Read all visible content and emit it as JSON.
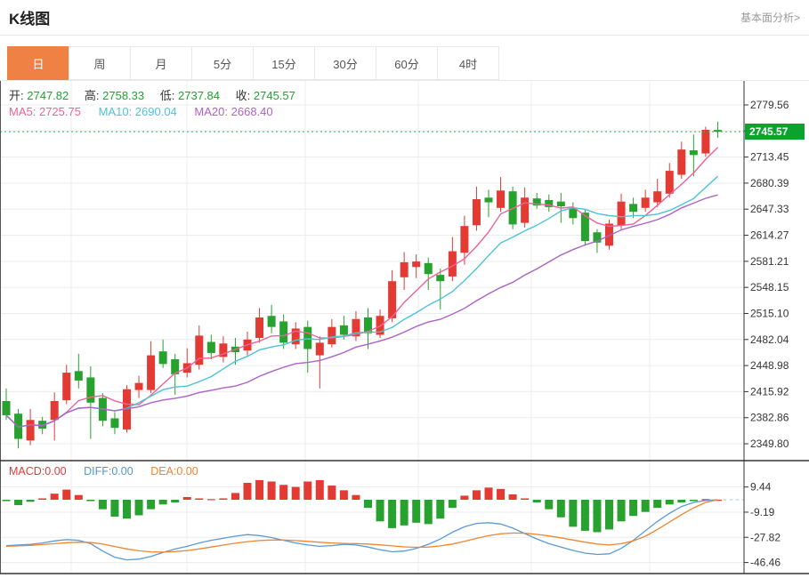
{
  "header": {
    "title": "K线图",
    "link": "基本面分析>"
  },
  "tabs": {
    "items": [
      "日",
      "周",
      "月",
      "5分",
      "15分",
      "30分",
      "60分",
      "4时"
    ],
    "selected_index": 0
  },
  "ohlc": {
    "open_label": "开:",
    "open": "2747.82",
    "high_label": "高:",
    "high": "2758.33",
    "low_label": "低:",
    "low": "2737.84",
    "close_label": "收:",
    "close": "2745.57"
  },
  "ma_readout": {
    "ma5_label": "MA5:",
    "ma5": "2725.75",
    "ma10_label": "MA10:",
    "ma10": "2690.04",
    "ma20_label": "MA20:",
    "ma20": "2668.40"
  },
  "macd_readout": {
    "macd_label": "MACD:",
    "macd": "0.00",
    "diff_label": "DIFF:",
    "diff": "0.00",
    "dea_label": "DEA:",
    "dea": "0.00"
  },
  "colors": {
    "accent_orange": "#ee8143",
    "candle_up": "#e33a34",
    "candle_down": "#27a22e",
    "ma5": "#ee6395",
    "ma10": "#4cc3d9",
    "ma20": "#ad62c6",
    "diff_line": "#5b9bd5",
    "dea_line": "#ee8532",
    "macd_label": "#e23b3b",
    "diff_label": "#4f96d6",
    "dea_label": "#ef8430",
    "ohlc_value_green": "#1aa62e",
    "price_tag_bg": "#0ba32e",
    "dotted_line": "#2fb457",
    "axis_text": "#333333",
    "grid": "#ececec",
    "frame": "#333333"
  },
  "chart_data": {
    "type": "candlestick",
    "panes": [
      "price",
      "macd"
    ],
    "legend_position": "top-left-overlay",
    "grid": true,
    "price_ticks": [
      "2779.56",
      "2745.57",
      "2713.45",
      "2680.39",
      "2647.33",
      "2614.27",
      "2581.21",
      "2548.15",
      "2515.10",
      "2482.04",
      "2448.98",
      "2415.92",
      "2382.86",
      "2349.80"
    ],
    "current_tick_index": 1,
    "current_price": 2745.57,
    "current_price_label": "2745.57",
    "macd_ticks": [
      "9.44",
      "-9.19",
      "-27.82",
      "-46.46"
    ],
    "ma_periods": [
      5,
      10,
      20
    ],
    "candles_ohlc": [
      [
        2404,
        2420,
        2380,
        2386
      ],
      [
        2388,
        2394,
        2344,
        2356
      ],
      [
        2354,
        2394,
        2348,
        2380
      ],
      [
        2379,
        2384,
        2362,
        2369
      ],
      [
        2380,
        2415,
        2354,
        2404
      ],
      [
        2405,
        2450,
        2400,
        2440
      ],
      [
        2442,
        2464,
        2420,
        2430
      ],
      [
        2434,
        2448,
        2356,
        2402
      ],
      [
        2408,
        2414,
        2372,
        2379
      ],
      [
        2382,
        2390,
        2362,
        2370
      ],
      [
        2368,
        2424,
        2364,
        2419
      ],
      [
        2418,
        2436,
        2408,
        2427
      ],
      [
        2418,
        2480,
        2414,
        2462
      ],
      [
        2467,
        2482,
        2446,
        2451
      ],
      [
        2457,
        2464,
        2412,
        2438
      ],
      [
        2440,
        2471,
        2434,
        2452
      ],
      [
        2450,
        2500,
        2444,
        2487
      ],
      [
        2479,
        2488,
        2457,
        2465
      ],
      [
        2460,
        2486,
        2453,
        2477
      ],
      [
        2473,
        2484,
        2450,
        2466
      ],
      [
        2468,
        2492,
        2462,
        2482
      ],
      [
        2484,
        2522,
        2478,
        2510
      ],
      [
        2512,
        2526,
        2490,
        2498
      ],
      [
        2505,
        2514,
        2470,
        2478
      ],
      [
        2476,
        2504,
        2470,
        2496
      ],
      [
        2498,
        2506,
        2440,
        2470
      ],
      [
        2462,
        2486,
        2420,
        2478
      ],
      [
        2476,
        2508,
        2472,
        2498
      ],
      [
        2500,
        2512,
        2482,
        2488
      ],
      [
        2486,
        2518,
        2480,
        2508
      ],
      [
        2510,
        2522,
        2470,
        2490
      ],
      [
        2488,
        2520,
        2484,
        2512
      ],
      [
        2509,
        2570,
        2504,
        2556
      ],
      [
        2561,
        2593,
        2545,
        2580
      ],
      [
        2574,
        2590,
        2560,
        2581
      ],
      [
        2579,
        2586,
        2545,
        2565
      ],
      [
        2564,
        2572,
        2520,
        2556
      ],
      [
        2562,
        2612,
        2556,
        2594
      ],
      [
        2592,
        2639,
        2577,
        2626
      ],
      [
        2627,
        2676,
        2620,
        2660
      ],
      [
        2662,
        2672,
        2637,
        2656
      ],
      [
        2649,
        2688,
        2644,
        2671
      ],
      [
        2670,
        2676,
        2622,
        2628
      ],
      [
        2630,
        2675,
        2624,
        2662
      ],
      [
        2661,
        2668,
        2648,
        2652
      ],
      [
        2659,
        2666,
        2644,
        2650
      ],
      [
        2657,
        2668,
        2630,
        2651
      ],
      [
        2649,
        2656,
        2628,
        2636
      ],
      [
        2643,
        2648,
        2601,
        2607
      ],
      [
        2618,
        2622,
        2592,
        2605
      ],
      [
        2601,
        2634,
        2596,
        2629
      ],
      [
        2627,
        2667,
        2622,
        2657
      ],
      [
        2654,
        2662,
        2636,
        2644
      ],
      [
        2649,
        2672,
        2644,
        2662
      ],
      [
        2656,
        2686,
        2650,
        2670
      ],
      [
        2667,
        2706,
        2662,
        2696
      ],
      [
        2691,
        2733,
        2686,
        2723
      ],
      [
        2722,
        2742,
        2689,
        2716
      ],
      [
        2718,
        2752,
        2714,
        2748
      ],
      [
        2747.82,
        2758.33,
        2737.84,
        2745.57
      ]
    ],
    "macd_hist": [
      -1,
      -4,
      -1.5,
      1,
      4.5,
      7.5,
      3.5,
      -1,
      -7,
      -12.5,
      -14,
      -11.5,
      -7,
      -3.5,
      -2,
      2,
      1,
      0.5,
      1,
      5,
      12.5,
      14.5,
      13.5,
      11,
      9.5,
      13.5,
      14.5,
      10.5,
      7,
      3.5,
      -6,
      -16,
      -21,
      -19,
      -17,
      -18,
      -14,
      -6,
      3,
      7,
      9,
      8,
      4,
      1,
      -2,
      -7,
      -13,
      -20,
      -23,
      -24,
      -22,
      -16,
      -12,
      -9,
      -6,
      -3.5,
      -2,
      -1,
      0.5,
      0
    ],
    "diff": [
      -34,
      -33.5,
      -33,
      -32,
      -30.5,
      -29.5,
      -30,
      -32.5,
      -38,
      -42.5,
      -44.5,
      -44,
      -42,
      -39,
      -36.5,
      -34.5,
      -32,
      -30,
      -28.5,
      -27,
      -25.8,
      -26.5,
      -28,
      -30,
      -32,
      -33.5,
      -34.5,
      -34,
      -33,
      -33.5,
      -35,
      -37,
      -38.5,
      -38,
      -36,
      -33,
      -29,
      -24,
      -20,
      -17.5,
      -17,
      -18,
      -21,
      -25,
      -29,
      -32.5,
      -35,
      -37.5,
      -39.5,
      -40.5,
      -40,
      -36,
      -30,
      -23,
      -16,
      -10,
      -5,
      -2,
      -0.5,
      0
    ],
    "dea": [
      -34.5,
      -34.2,
      -33.8,
      -33.2,
      -32.5,
      -31.8,
      -31.4,
      -31.6,
      -32.8,
      -34.6,
      -36.4,
      -37.8,
      -38.6,
      -38.8,
      -38.4,
      -37.6,
      -36.4,
      -35,
      -33.6,
      -32.2,
      -31,
      -30.2,
      -29.8,
      -29.8,
      -30.2,
      -30.8,
      -31.5,
      -32,
      -32.3,
      -32.5,
      -32.8,
      -33.4,
      -34.2,
      -34.9,
      -35.2,
      -35,
      -34.2,
      -32.8,
      -30.8,
      -28.6,
      -26.6,
      -25.2,
      -24.6,
      -24.8,
      -25.6,
      -26.8,
      -28.2,
      -29.8,
      -31.4,
      -32.8,
      -33.5,
      -32.5,
      -30.5,
      -27,
      -22,
      -16.5,
      -11,
      -6,
      -2,
      0
    ]
  }
}
